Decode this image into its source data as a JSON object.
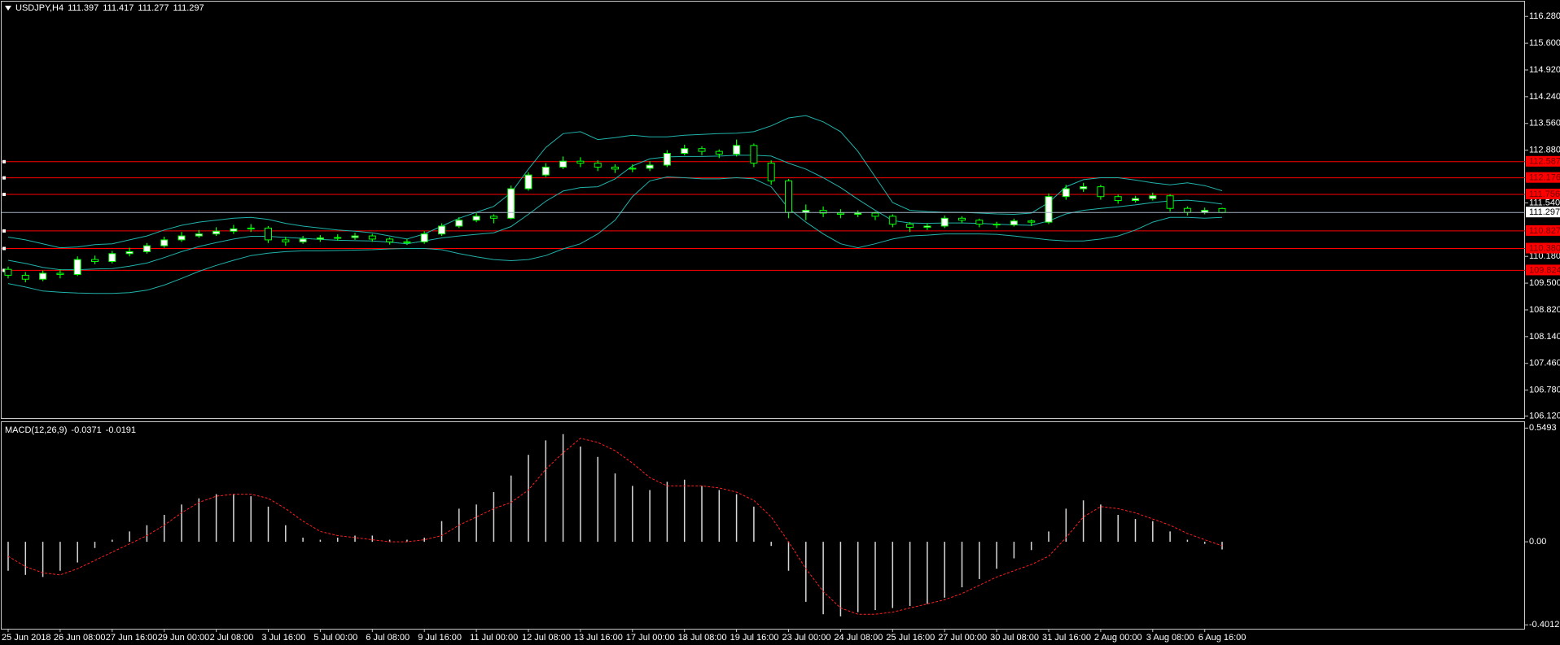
{
  "chart_data": [
    {
      "type": "candlestick",
      "title": "USDJPY,H4",
      "categories": [
        "25 Jun 2018",
        null,
        null,
        "26 Jun 08:00",
        null,
        null,
        "27 Jun 16:00",
        null,
        null,
        "29 Jun 00:00",
        null,
        null,
        "2 Jul 08:00",
        null,
        null,
        "3 Jul 16:00",
        null,
        null,
        "5 Jul 00:00",
        null,
        null,
        "6 Jul 08:00",
        null,
        null,
        "9 Jul 16:00",
        null,
        null,
        "11 Jul 00:00",
        null,
        null,
        "12 Jul 08:00",
        null,
        null,
        "13 Jul 16:00",
        null,
        null,
        "17 Jul 00:00",
        null,
        null,
        "18 Jul 08:00",
        null,
        null,
        "19 Jul 16:00",
        null,
        null,
        "23 Jul 00:00",
        null,
        null,
        "24 Jul 08:00",
        null,
        null,
        "25 Jul 16:00",
        null,
        null,
        "27 Jul 00:00",
        null,
        null,
        "30 Jul 08:00",
        null,
        null,
        "31 Jul 16:00",
        null,
        null,
        "2 Aug 00:00",
        null,
        null,
        "3 Aug 08:00",
        null,
        null,
        "6 Aug 16:00",
        null
      ],
      "candles": [
        [
          109.85,
          109.92,
          109.62,
          109.7
        ],
        [
          109.7,
          109.78,
          109.52,
          109.6
        ],
        [
          109.6,
          109.82,
          109.55,
          109.75
        ],
        [
          109.75,
          109.85,
          109.62,
          109.72
        ],
        [
          109.72,
          110.18,
          109.68,
          110.1
        ],
        [
          110.1,
          110.2,
          109.98,
          110.05
        ],
        [
          110.05,
          110.32,
          110.0,
          110.25
        ],
        [
          110.25,
          110.4,
          110.18,
          110.3
        ],
        [
          110.3,
          110.52,
          110.25,
          110.45
        ],
        [
          110.45,
          110.68,
          110.4,
          110.6
        ],
        [
          110.6,
          110.8,
          110.55,
          110.7
        ],
        [
          110.7,
          110.85,
          110.65,
          110.75
        ],
        [
          110.75,
          110.92,
          110.7,
          110.82
        ],
        [
          110.82,
          110.98,
          110.75,
          110.88
        ],
        [
          110.88,
          111.0,
          110.8,
          110.9
        ],
        [
          110.9,
          110.95,
          110.52,
          110.6
        ],
        [
          110.6,
          110.68,
          110.45,
          110.55
        ],
        [
          110.55,
          110.7,
          110.5,
          110.62
        ],
        [
          110.62,
          110.72,
          110.55,
          110.65
        ],
        [
          110.65,
          110.74,
          110.58,
          110.66
        ],
        [
          110.66,
          110.78,
          110.6,
          110.7
        ],
        [
          110.7,
          110.75,
          110.55,
          110.62
        ],
        [
          110.62,
          110.66,
          110.48,
          110.55
        ],
        [
          110.55,
          110.62,
          110.47,
          110.55
        ],
        [
          110.55,
          110.82,
          110.5,
          110.75
        ],
        [
          110.75,
          111.02,
          110.7,
          110.95
        ],
        [
          110.95,
          111.18,
          110.9,
          111.1
        ],
        [
          111.1,
          111.28,
          111.05,
          111.2
        ],
        [
          111.2,
          111.25,
          111.02,
          111.15
        ],
        [
          111.15,
          111.98,
          111.12,
          111.9
        ],
        [
          111.9,
          112.32,
          111.85,
          112.25
        ],
        [
          112.25,
          112.55,
          112.2,
          112.45
        ],
        [
          112.45,
          112.72,
          112.4,
          112.6
        ],
        [
          112.6,
          112.7,
          112.45,
          112.55
        ],
        [
          112.55,
          112.62,
          112.35,
          112.45
        ],
        [
          112.45,
          112.52,
          112.3,
          112.4
        ],
        [
          112.4,
          112.52,
          112.32,
          112.42
        ],
        [
          112.42,
          112.6,
          112.35,
          112.5
        ],
        [
          112.5,
          112.88,
          112.45,
          112.8
        ],
        [
          112.8,
          113.02,
          112.75,
          112.92
        ],
        [
          112.92,
          112.98,
          112.75,
          112.85
        ],
        [
          112.85,
          112.9,
          112.68,
          112.78
        ],
        [
          112.78,
          113.15,
          112.72,
          113.0
        ],
        [
          113.0,
          113.05,
          112.45,
          112.55
        ],
        [
          112.55,
          112.62,
          112.0,
          112.1
        ],
        [
          112.1,
          112.15,
          111.15,
          111.3
        ],
        [
          111.3,
          111.5,
          111.1,
          111.35
        ],
        [
          111.35,
          111.45,
          111.18,
          111.28
        ],
        [
          111.28,
          111.38,
          111.15,
          111.25
        ],
        [
          111.25,
          111.35,
          111.18,
          111.28
        ],
        [
          111.28,
          111.32,
          111.1,
          111.2
        ],
        [
          111.2,
          111.25,
          110.92,
          111.0
        ],
        [
          111.0,
          111.05,
          110.8,
          110.92
        ],
        [
          110.92,
          111.02,
          110.85,
          110.95
        ],
        [
          110.95,
          111.22,
          110.9,
          111.15
        ],
        [
          111.15,
          111.2,
          111.02,
          111.1
        ],
        [
          111.1,
          111.14,
          110.92,
          111.0
        ],
        [
          111.0,
          111.06,
          110.9,
          110.98
        ],
        [
          110.98,
          111.14,
          110.94,
          111.08
        ],
        [
          111.08,
          111.12,
          110.95,
          111.05
        ],
        [
          111.05,
          111.78,
          111.0,
          111.7
        ],
        [
          111.7,
          112.0,
          111.62,
          111.9
        ],
        [
          111.9,
          112.05,
          111.82,
          111.95
        ],
        [
          111.95,
          112.0,
          111.62,
          111.7
        ],
        [
          111.7,
          111.75,
          111.52,
          111.6
        ],
        [
          111.6,
          111.72,
          111.55,
          111.65
        ],
        [
          111.65,
          111.8,
          111.6,
          111.72
        ],
        [
          111.72,
          111.76,
          111.32,
          111.4
        ],
        [
          111.4,
          111.45,
          111.22,
          111.3
        ],
        [
          111.3,
          111.42,
          111.25,
          111.35
        ],
        [
          111.397,
          111.417,
          111.277,
          111.297
        ]
      ],
      "series": [
        {
          "color": "#20b2aa",
          "values": [
            110.67,
            110.6,
            110.5,
            110.4,
            110.42,
            110.48,
            110.5,
            110.6,
            110.7,
            110.85,
            110.97,
            111.05,
            111.1,
            111.15,
            111.17,
            111.12,
            111.02,
            110.95,
            110.9,
            110.85,
            110.82,
            110.78,
            110.7,
            110.62,
            110.75,
            110.95,
            111.15,
            111.3,
            111.45,
            111.8,
            112.4,
            112.95,
            113.3,
            113.35,
            113.15,
            113.2,
            113.26,
            113.22,
            113.22,
            113.26,
            113.28,
            113.3,
            113.31,
            113.35,
            113.5,
            113.7,
            113.76,
            113.6,
            113.35,
            112.85,
            112.2,
            111.55,
            111.35,
            111.32,
            111.3,
            111.3,
            111.28,
            111.26,
            111.25,
            111.28,
            111.55,
            111.95,
            112.13,
            112.18,
            112.18,
            112.12,
            112.05,
            112.0,
            112.05,
            111.98,
            111.85
          ]
        },
        {
          "color": "#20b2aa",
          "values": [
            110.08,
            110.0,
            109.9,
            109.84,
            109.84,
            109.86,
            109.87,
            109.93,
            110.01,
            110.15,
            110.3,
            110.43,
            110.53,
            110.62,
            110.69,
            110.69,
            110.66,
            110.64,
            110.61,
            110.59,
            110.58,
            110.57,
            110.54,
            110.5,
            110.57,
            110.65,
            110.7,
            110.74,
            110.78,
            110.94,
            111.25,
            111.58,
            111.84,
            111.93,
            111.95,
            112.15,
            112.48,
            112.66,
            112.71,
            112.72,
            112.72,
            112.73,
            112.75,
            112.75,
            112.73,
            112.55,
            112.4,
            112.18,
            111.93,
            111.63,
            111.35,
            111.09,
            111.03,
            111.02,
            111.03,
            111.03,
            111.02,
            111.0,
            110.98,
            110.97,
            111.08,
            111.26,
            111.35,
            111.4,
            111.44,
            111.49,
            111.55,
            111.59,
            111.61,
            111.57,
            111.51
          ]
        },
        {
          "color": "#20b2aa",
          "values": [
            109.49,
            109.4,
            109.3,
            109.27,
            109.25,
            109.24,
            109.24,
            109.26,
            109.32,
            109.45,
            109.62,
            109.8,
            109.95,
            110.08,
            110.2,
            110.26,
            110.3,
            110.32,
            110.32,
            110.33,
            110.34,
            110.35,
            110.37,
            110.38,
            110.38,
            110.35,
            110.25,
            110.17,
            110.1,
            110.07,
            110.1,
            110.2,
            110.37,
            110.5,
            110.75,
            111.1,
            111.7,
            112.1,
            112.2,
            112.18,
            112.15,
            112.15,
            112.18,
            112.15,
            111.95,
            111.4,
            111.05,
            110.75,
            110.5,
            110.4,
            110.5,
            110.62,
            110.7,
            110.72,
            110.75,
            110.75,
            110.75,
            110.74,
            110.7,
            110.65,
            110.6,
            110.57,
            110.57,
            110.62,
            110.7,
            110.85,
            111.05,
            111.17,
            111.17,
            111.15,
            111.17
          ]
        }
      ],
      "levels": {
        "color": "#ff0000",
        "values": [
          112.587,
          112.176,
          111.756,
          110.827,
          110.38,
          109.824
        ],
        "value_labels": [
          "112.587",
          "112.176",
          "111.756",
          "110.827",
          "110.380",
          "109.824"
        ]
      },
      "ylim": [
        106.069,
        116.657
      ],
      "yticks": [
        {
          "value": 116.28,
          "label": "116.280"
        },
        {
          "value": 115.6,
          "label": "115.600"
        },
        {
          "value": 114.92,
          "label": "114.920"
        },
        {
          "value": 114.24,
          "label": "114.240"
        },
        {
          "value": 113.56,
          "label": "113.560"
        },
        {
          "value": 112.88,
          "label": "112.880"
        },
        {
          "value": 111.54,
          "label": "111.540"
        },
        {
          "value": 110.18,
          "label": "110.180"
        },
        {
          "value": 109.5,
          "label": "109.500"
        },
        {
          "value": 108.82,
          "label": "108.820"
        },
        {
          "value": 108.14,
          "label": "108.140"
        },
        {
          "value": 107.46,
          "label": "107.460"
        },
        {
          "value": 106.78,
          "label": "106.780"
        },
        {
          "value": 106.12,
          "label": "106.120"
        }
      ],
      "grid": false
    },
    {
      "type": "macd",
      "title": "MACD(12,26,9)",
      "series": [
        {
          "color": "#d8d8d8",
          "values": [
            -0.14,
            -0.16,
            -0.17,
            -0.14,
            -0.1,
            -0.03,
            0.01,
            0.05,
            0.08,
            0.13,
            0.18,
            0.21,
            0.23,
            0.23,
            0.22,
            0.17,
            0.08,
            0.02,
            0.01,
            0.02,
            0.03,
            0.03,
            0.01,
            0.01,
            0.02,
            0.1,
            0.16,
            0.18,
            0.24,
            0.32,
            0.42,
            0.49,
            0.52,
            0.46,
            0.41,
            0.33,
            0.27,
            0.25,
            0.29,
            0.3,
            0.27,
            0.25,
            0.23,
            0.17,
            -0.02,
            -0.14,
            -0.29,
            -0.35,
            -0.36,
            -0.34,
            -0.33,
            -0.32,
            -0.31,
            -0.3,
            -0.27,
            -0.22,
            -0.18,
            -0.13,
            -0.08,
            -0.04,
            0.05,
            0.16,
            0.2,
            0.18,
            0.13,
            0.11,
            0.1,
            0.05,
            0.01,
            -0.01,
            -0.0371
          ]
        },
        {
          "color": "#ff2020",
          "values": [
            -0.07,
            -0.12,
            -0.15,
            -0.16,
            -0.13,
            -0.09,
            -0.05,
            -0.01,
            0.03,
            0.08,
            0.14,
            0.19,
            0.22,
            0.23,
            0.23,
            0.21,
            0.16,
            0.1,
            0.05,
            0.03,
            0.02,
            0.01,
            0.0,
            0.0,
            0.01,
            0.03,
            0.08,
            0.12,
            0.16,
            0.19,
            0.25,
            0.35,
            0.43,
            0.5,
            0.48,
            0.44,
            0.38,
            0.31,
            0.27,
            0.27,
            0.27,
            0.26,
            0.24,
            0.2,
            0.12,
            0.0,
            -0.13,
            -0.24,
            -0.32,
            -0.35,
            -0.35,
            -0.34,
            -0.32,
            -0.3,
            -0.28,
            -0.25,
            -0.21,
            -0.17,
            -0.14,
            -0.11,
            -0.07,
            0.02,
            0.12,
            0.17,
            0.16,
            0.14,
            0.11,
            0.08,
            0.04,
            0.01,
            -0.0191
          ]
        }
      ],
      "ylim": [
        -0.42,
        0.578
      ],
      "yticks": [
        0.5493,
        {
          "value": 0,
          "label": "0.00"
        },
        -0.4012
      ]
    }
  ]
}
